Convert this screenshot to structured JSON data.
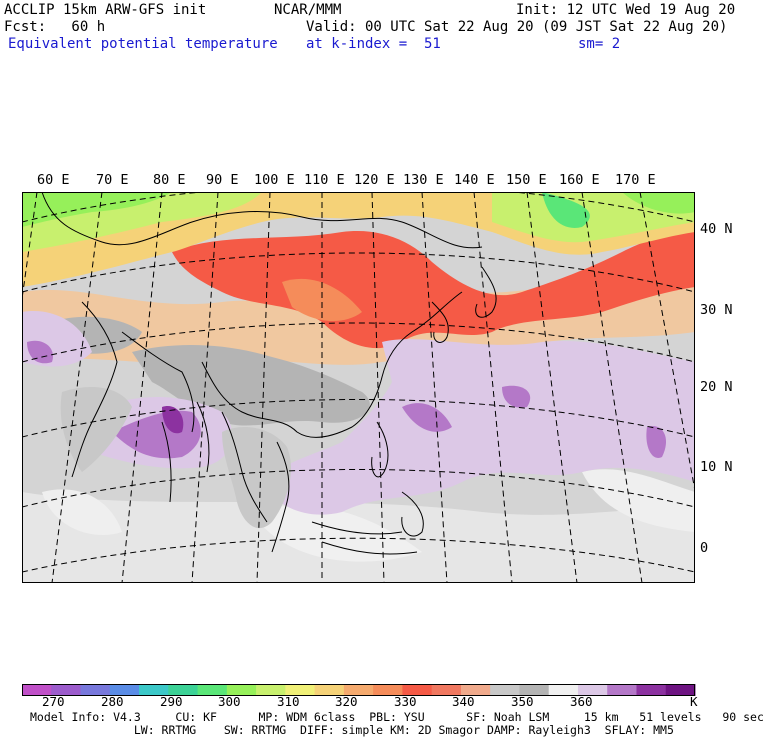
{
  "header": {
    "line1_left": "ACCLIP 15km ARW-GFS init",
    "line1_center": "NCAR/MMM",
    "line1_right": "Init: 12 UTC Wed 19 Aug 20",
    "line2_left": "Fcst:   60 h",
    "line2_right": "Valid: 00 UTC Sat 22 Aug 20 (09 JST Sat 22 Aug 20)",
    "line3_left": "Equivalent potential temperature",
    "line3_center": "at k-index =  51",
    "line3_right": "sm= 2"
  },
  "map": {
    "longitude_labels": [
      "60 E",
      "70 E",
      "80 E",
      "90 E",
      "100 E",
      "110 E",
      "120 E",
      "130 E",
      "140 E",
      "150 E",
      "160 E",
      "170 E"
    ],
    "latitude_labels": [
      "40 N",
      "30 N",
      "20 N",
      "10 N",
      "0"
    ]
  },
  "colorbar": {
    "unit": "K",
    "tick_labels": [
      "270",
      "280",
      "290",
      "300",
      "310",
      "320",
      "330",
      "340",
      "350",
      "360"
    ],
    "colors": [
      "#c050c8",
      "#9c5ccc",
      "#7878dc",
      "#5a8ce6",
      "#3cc8c8",
      "#3cd296",
      "#5ae678",
      "#96f05a",
      "#c8f06e",
      "#f0f078",
      "#f5d278",
      "#f5aa6e",
      "#f58c5a",
      "#f55a46",
      "#f07860",
      "#f0aa8c",
      "#c8c8c8",
      "#b4b4b4",
      "#f0f0f0",
      "#dcc8e6",
      "#b478c8",
      "#8c32a0",
      "#6e1482"
    ]
  },
  "footer": {
    "line1": "Model Info: V4.3     CU: KF      MP: WDM 6class  PBL: YSU      SF: Noah LSM     15 km   51 levels   90 sec",
    "line2": "               LW: RRTMG    SW: RRTMG  DIFF: simple KM: 2D Smagor DAMP: Rayleigh3  SFLAY: MM5"
  }
}
